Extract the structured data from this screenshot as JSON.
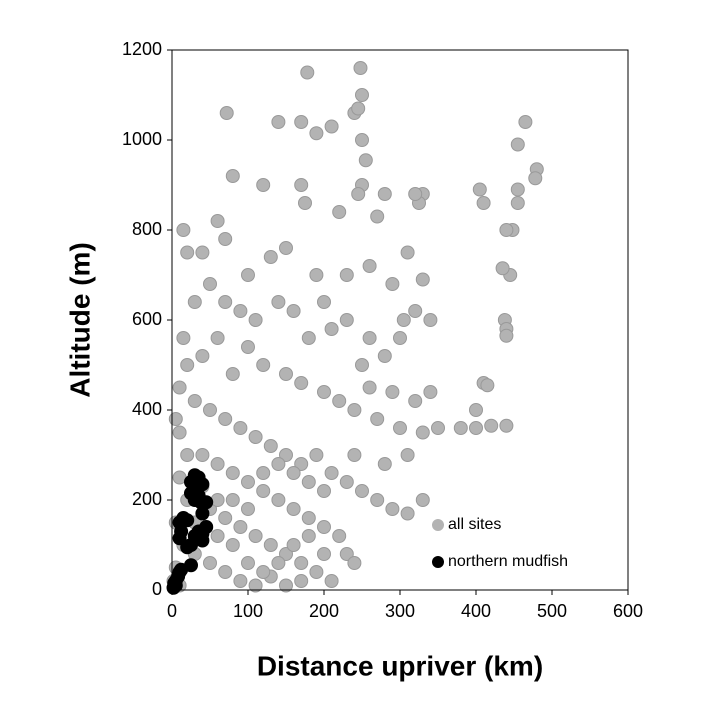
{
  "chart_data": {
    "type": "scatter",
    "xlabel": "Distance upriver (km)",
    "ylabel": "Altitude (m)",
    "xlim": [
      0,
      600
    ],
    "ylim": [
      0,
      1200
    ],
    "xticks": [
      0,
      100,
      200,
      300,
      400,
      500,
      600
    ],
    "yticks": [
      0,
      200,
      400,
      600,
      800,
      1000,
      1200
    ],
    "grid": false,
    "legend": "lower right",
    "series": [
      {
        "name": "all sites",
        "color": "#b3b3b3",
        "x": [
          178,
          248,
          250,
          72,
          140,
          170,
          190,
          210,
          240,
          245,
          250,
          255,
          465,
          455,
          480,
          478,
          455,
          455,
          448,
          440,
          445,
          435,
          438,
          440,
          440,
          405,
          410,
          330,
          325,
          320,
          280,
          270,
          250,
          245,
          220,
          170,
          175,
          120,
          80,
          15,
          20,
          40,
          60,
          70,
          100,
          130,
          150,
          190,
          200,
          230,
          260,
          290,
          310,
          330,
          340,
          305,
          320,
          300,
          260,
          280,
          250,
          230,
          210,
          180,
          160,
          140,
          110,
          90,
          70,
          50,
          30,
          15,
          20,
          40,
          60,
          80,
          100,
          120,
          150,
          170,
          200,
          220,
          240,
          270,
          300,
          330,
          350,
          380,
          400,
          420,
          440,
          400,
          410,
          415,
          340,
          320,
          290,
          260,
          10,
          30,
          50,
          70,
          90,
          110,
          130,
          150,
          170,
          190,
          210,
          230,
          250,
          270,
          290,
          310,
          330,
          310,
          280,
          240,
          5,
          10,
          20,
          40,
          60,
          80,
          100,
          120,
          140,
          160,
          180,
          200,
          220,
          230,
          240,
          10,
          20,
          30,
          50,
          70,
          90,
          110,
          130,
          150,
          170,
          190,
          210,
          5,
          15,
          30,
          50,
          70,
          90,
          110,
          130,
          150,
          170,
          5,
          2,
          10,
          60,
          80,
          100,
          120,
          140,
          160,
          180,
          200,
          40,
          60,
          80,
          100,
          120,
          140,
          160,
          180,
          200
        ],
        "y": [
          1150,
          1160,
          1100,
          1060,
          1040,
          1040,
          1015,
          1030,
          1060,
          1070,
          1000,
          955,
          1040,
          990,
          935,
          915,
          890,
          860,
          800,
          800,
          700,
          715,
          600,
          580,
          565,
          890,
          860,
          880,
          860,
          880,
          880,
          830,
          900,
          880,
          840,
          900,
          860,
          900,
          920,
          800,
          750,
          750,
          820,
          780,
          700,
          740,
          760,
          700,
          640,
          700,
          720,
          680,
          750,
          690,
          600,
          600,
          620,
          560,
          560,
          520,
          500,
          600,
          580,
          560,
          620,
          640,
          600,
          620,
          640,
          680,
          640,
          560,
          500,
          520,
          560,
          480,
          540,
          500,
          480,
          460,
          440,
          420,
          400,
          380,
          360,
          350,
          360,
          360,
          360,
          365,
          365,
          400,
          460,
          455,
          440,
          420,
          440,
          450,
          450,
          420,
          400,
          380,
          360,
          340,
          320,
          300,
          280,
          300,
          260,
          240,
          220,
          200,
          180,
          170,
          200,
          300,
          280,
          300,
          380,
          350,
          300,
          300,
          280,
          260,
          240,
          220,
          200,
          180,
          160,
          140,
          120,
          80,
          60,
          250,
          200,
          150,
          180,
          160,
          140,
          120,
          100,
          80,
          60,
          40,
          20,
          150,
          100,
          80,
          60,
          40,
          20,
          10,
          30,
          10,
          20,
          50,
          20,
          10,
          120,
          100,
          60,
          40,
          60,
          100,
          120,
          80,
          230,
          200,
          200,
          180,
          260,
          280,
          260,
          240,
          220
        ]
      },
      {
        "name": "northern mudfish",
        "color": "#000000",
        "x": [
          2,
          5,
          8,
          10,
          5,
          3,
          12,
          25,
          20,
          25,
          30,
          35,
          40,
          45,
          40,
          38,
          45,
          30,
          35,
          25,
          30,
          40,
          25,
          30,
          35,
          10,
          12,
          10,
          15,
          20,
          40
        ],
        "y": [
          5,
          20,
          30,
          40,
          10,
          15,
          45,
          55,
          95,
          100,
          120,
          130,
          125,
          140,
          170,
          195,
          195,
          200,
          210,
          215,
          230,
          235,
          240,
          255,
          250,
          115,
          130,
          150,
          160,
          155,
          110
        ]
      }
    ]
  }
}
